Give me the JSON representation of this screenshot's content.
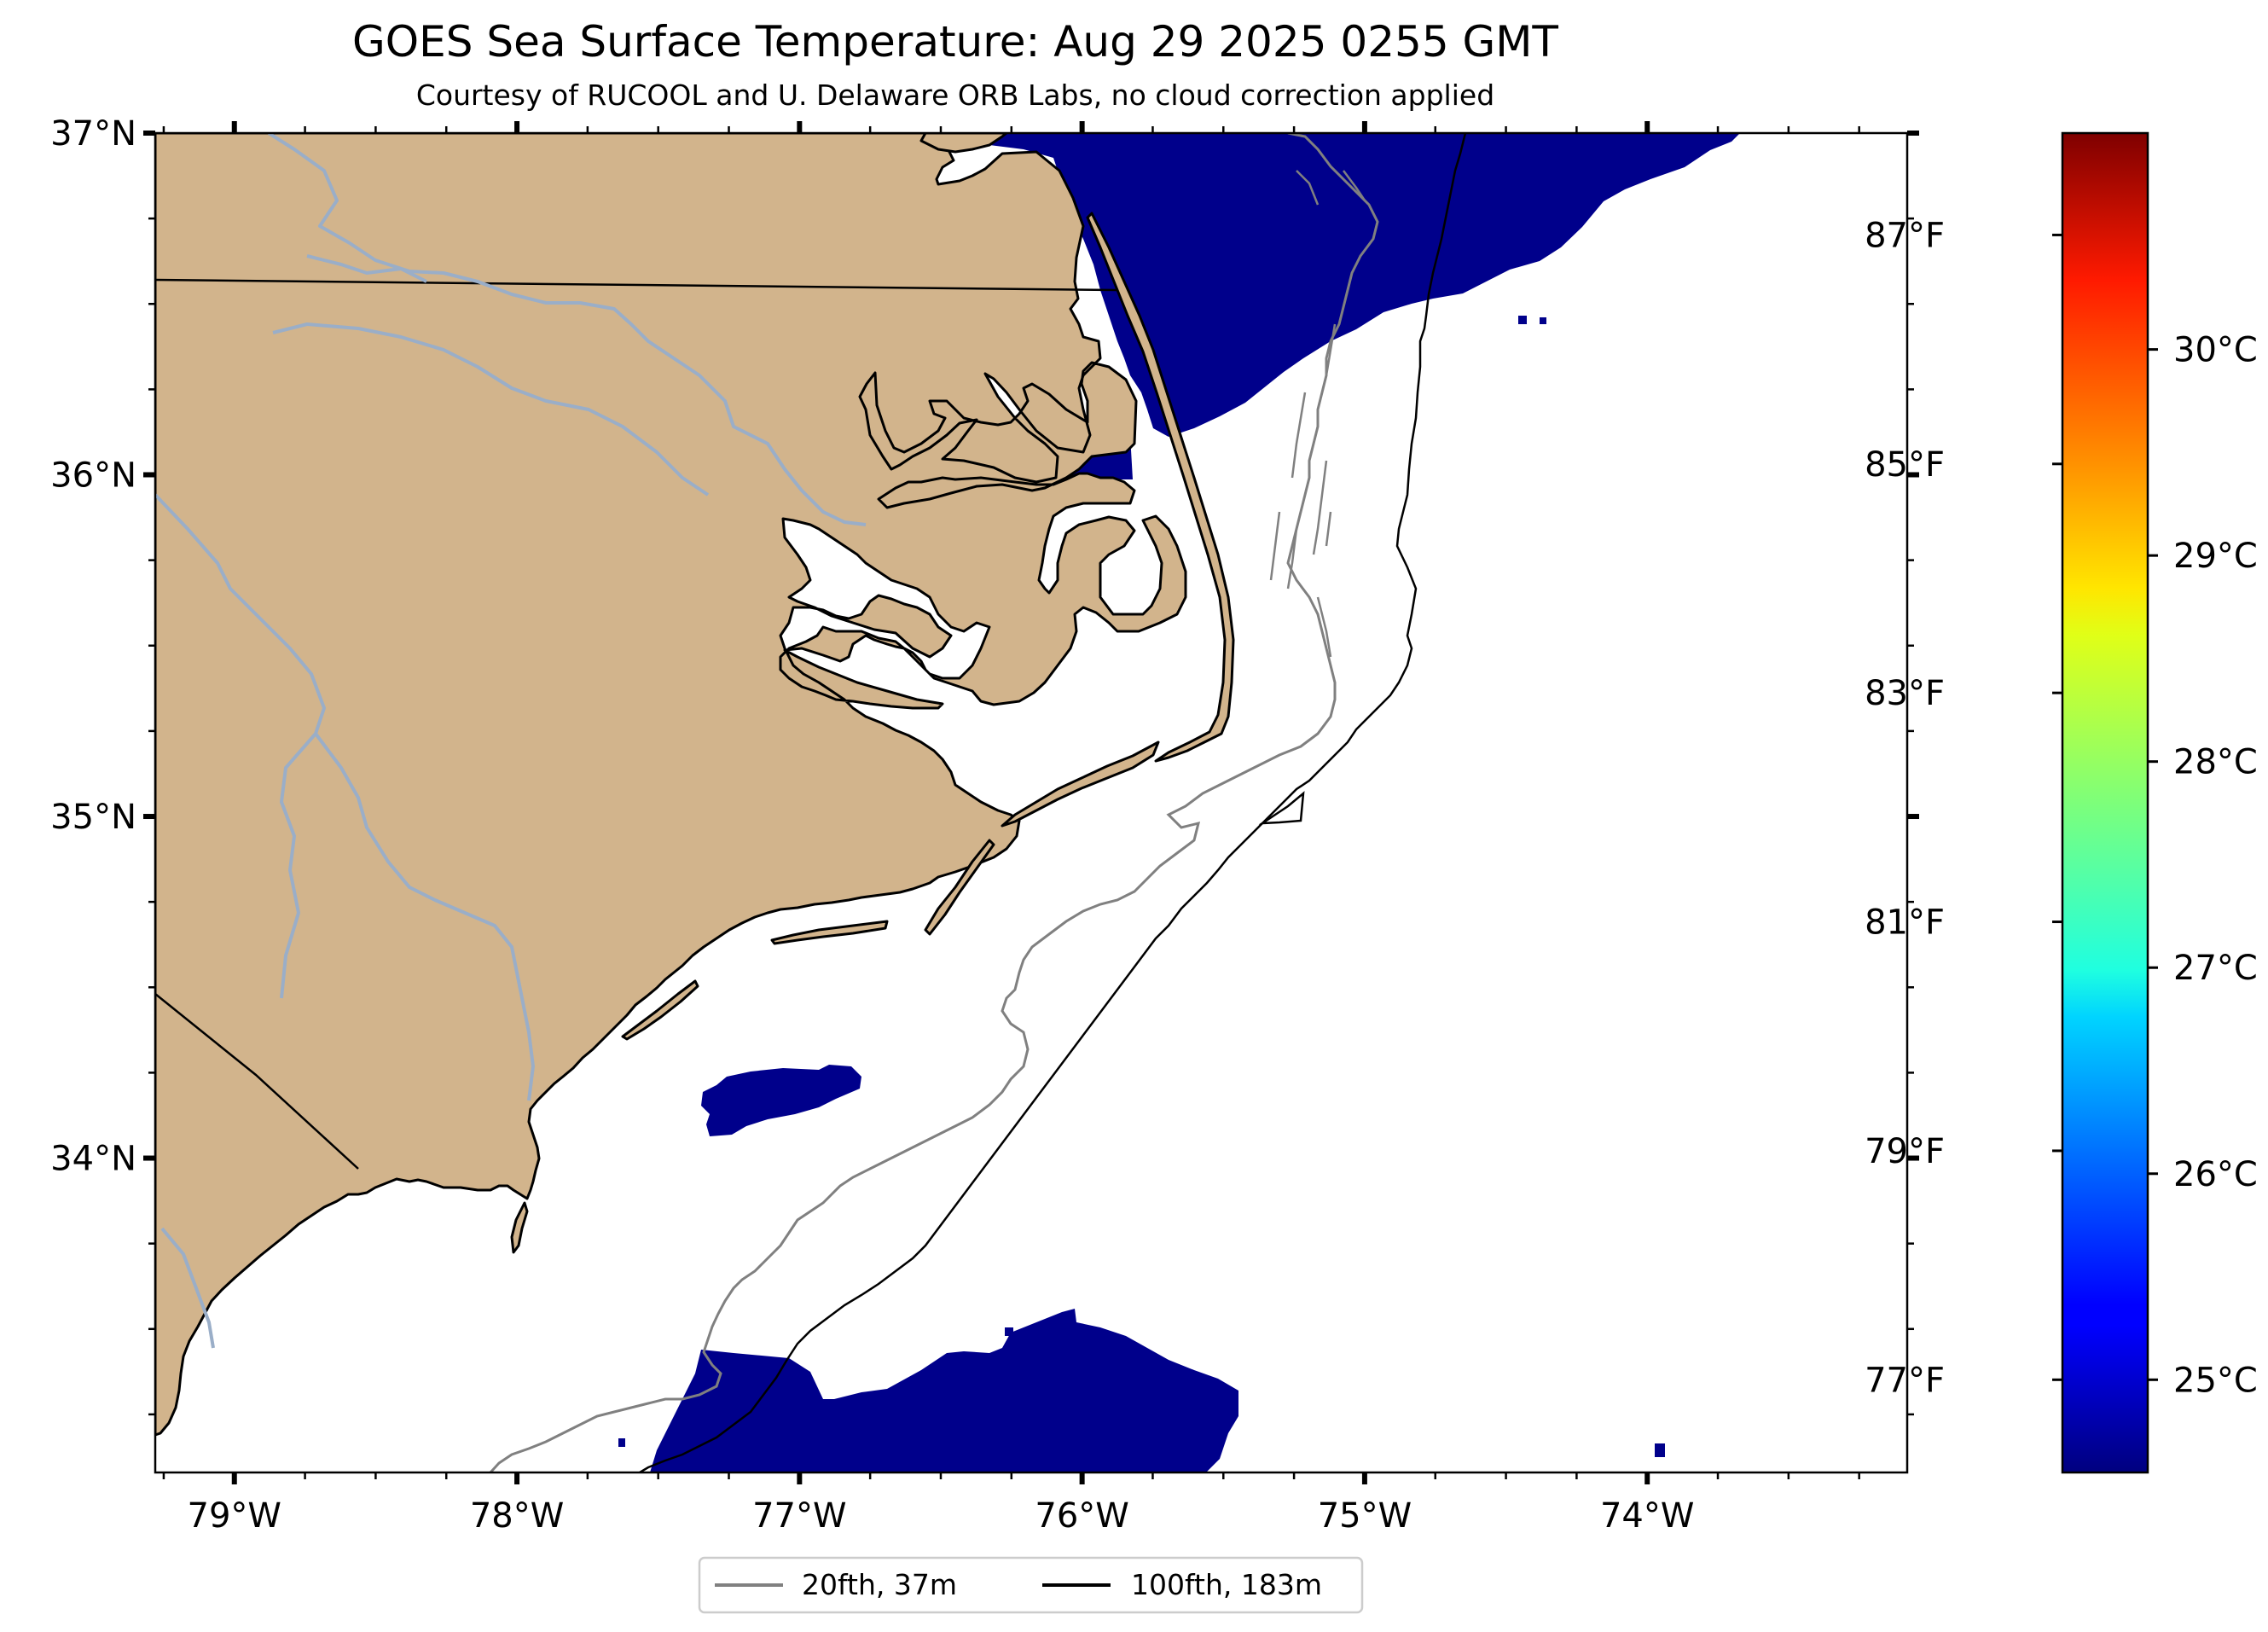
{
  "title": "GOES Sea Surface Temperature: Aug 29 2025 0255 GMT",
  "subtitle": "Courtesy of RUCOOL and U. Delaware ORB Labs, no cloud correction applied",
  "map": {
    "lon_range": [
      -79.28,
      -73.08
    ],
    "lat_range": [
      33.08,
      37.0
    ],
    "land_color": "#d2b48c",
    "ocean_color": "#ffffff",
    "river_color": "#9aaec8",
    "sst_color": "#00008b",
    "lat_ticks": [
      {
        "value": 37,
        "label": "37°N"
      },
      {
        "value": 36,
        "label": "36°N"
      },
      {
        "value": 35,
        "label": "35°N"
      },
      {
        "value": 34,
        "label": "34°N"
      }
    ],
    "lon_ticks": [
      {
        "value": -79,
        "label": "79°W"
      },
      {
        "value": -78,
        "label": "78°W"
      },
      {
        "value": -77,
        "label": "77°W"
      },
      {
        "value": -76,
        "label": "76°W"
      },
      {
        "value": -75,
        "label": "75°W"
      },
      {
        "value": -74,
        "label": "74°W"
      }
    ]
  },
  "colorbar": {
    "colormap": "jet",
    "range_c": [
      24.55,
      31.05
    ],
    "celsius_ticks": [
      {
        "value": 25,
        "label": "25°C"
      },
      {
        "value": 26,
        "label": "26°C"
      },
      {
        "value": 27,
        "label": "27°C"
      },
      {
        "value": 28,
        "label": "28°C"
      },
      {
        "value": 29,
        "label": "29°C"
      },
      {
        "value": 30,
        "label": "30°C"
      }
    ],
    "fahrenheit_ticks": [
      {
        "value": 77,
        "label": "77°F"
      },
      {
        "value": 79,
        "label": "79°F"
      },
      {
        "value": 81,
        "label": "81°F"
      },
      {
        "value": 83,
        "label": "83°F"
      },
      {
        "value": 85,
        "label": "85°F"
      },
      {
        "value": 87,
        "label": "87°F"
      }
    ]
  },
  "legend": {
    "items": [
      {
        "label": "20fth, 37m",
        "color": "#808080"
      },
      {
        "label": "100fth, 183m",
        "color": "#000000"
      }
    ]
  }
}
